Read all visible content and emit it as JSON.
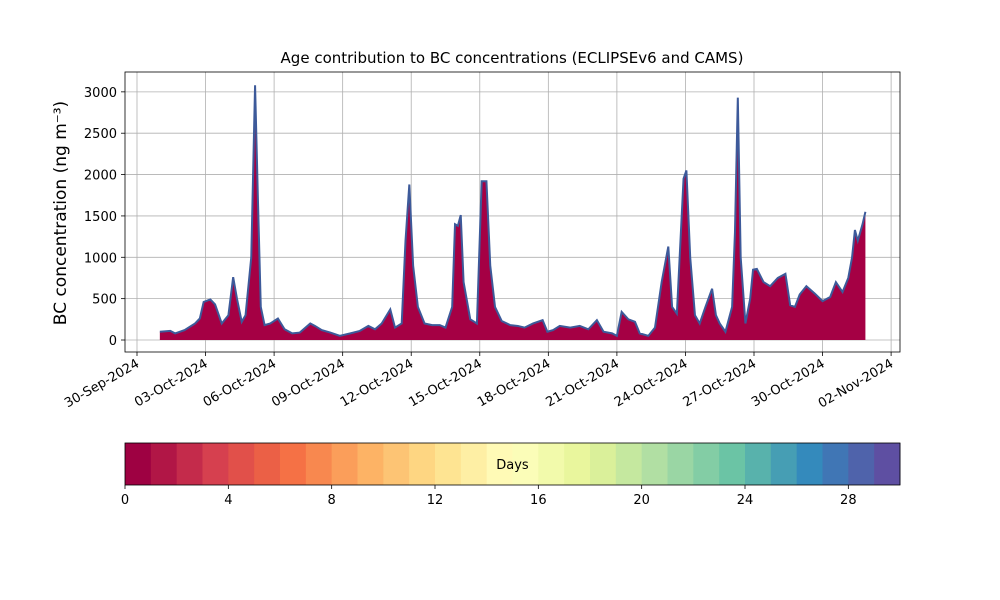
{
  "chart_data": {
    "type": "area",
    "title": "Age contribution to BC concentrations (ECLIPSEv6 and CAMS)",
    "y_label": "BC concentration (ng m⁻³)",
    "x": [
      "2024-10-01T00:00",
      "2024-10-01T11:00",
      "2024-10-01T16:00",
      "2024-10-02T02:00",
      "2024-10-02T13:00",
      "2024-10-02T18:00",
      "2024-10-02T22:00",
      "2024-10-03T05:00",
      "2024-10-03T10:00",
      "2024-10-03T17:00",
      "2024-10-04T00:00",
      "2024-10-04T05:00",
      "2024-10-04T09:00",
      "2024-10-04T14:00",
      "2024-10-04T18:00",
      "2024-10-05T00:00",
      "2024-10-05T04:00",
      "2024-10-05T07:00",
      "2024-10-05T10:00",
      "2024-10-05T14:00",
      "2024-10-05T20:00",
      "2024-10-06T04:00",
      "2024-10-06T11:00",
      "2024-10-06T19:00",
      "2024-10-07T03:00",
      "2024-10-07T14:00",
      "2024-10-07T19:00",
      "2024-10-08T02:00",
      "2024-10-08T11:00",
      "2024-10-08T21:00",
      "2024-10-09T08:00",
      "2024-10-09T18:00",
      "2024-10-10T03:00",
      "2024-10-10T10:00",
      "2024-10-10T17:00",
      "2024-10-11T02:00",
      "2024-10-11T07:00",
      "2024-10-11T14:00",
      "2024-10-11T18:00",
      "2024-10-11T22:00",
      "2024-10-12T02:00",
      "2024-10-12T07:00",
      "2024-10-12T14:00",
      "2024-10-12T22:00",
      "2024-10-13T06:00",
      "2024-10-13T12:00",
      "2024-10-13T19:00",
      "2024-10-13T22:00",
      "2024-10-14T01:00",
      "2024-10-14T04:00",
      "2024-10-14T07:00",
      "2024-10-14T14:00",
      "2024-10-14T21:00",
      "2024-10-15T02:00",
      "2024-10-15T07:00",
      "2024-10-15T11:00",
      "2024-10-15T16:00",
      "2024-10-15T23:00",
      "2024-10-16T08:00",
      "2024-10-16T16:00",
      "2024-10-16T23:00",
      "2024-10-17T08:00",
      "2024-10-17T18:00",
      "2024-10-17T23:00",
      "2024-10-18T05:00",
      "2024-10-18T12:00",
      "2024-10-18T23:00",
      "2024-10-19T09:00",
      "2024-10-19T18:00",
      "2024-10-20T03:00",
      "2024-10-20T10:00",
      "2024-10-20T19:00",
      "2024-10-21T00:00",
      "2024-10-21T05:00",
      "2024-10-21T12:00",
      "2024-10-21T19:00",
      "2024-10-22T00:00",
      "2024-10-22T09:00",
      "2024-10-22T16:00",
      "2024-10-22T23:00",
      "2024-10-23T06:00",
      "2024-10-23T10:00",
      "2024-10-23T15:00",
      "2024-10-23T22:00",
      "2024-10-24T01:00",
      "2024-10-24T05:00",
      "2024-10-24T10:00",
      "2024-10-24T15:00",
      "2024-10-24T21:00",
      "2024-10-25T04:00",
      "2024-10-25T08:00",
      "2024-10-25T12:00",
      "2024-10-25T18:00",
      "2024-10-26T01:00",
      "2024-10-26T04:00",
      "2024-10-26T07:00",
      "2024-10-26T10:00",
      "2024-10-26T15:00",
      "2024-10-26T20:00",
      "2024-10-26T23:00",
      "2024-10-27T03:00",
      "2024-10-27T10:00",
      "2024-10-27T17:00",
      "2024-10-28T01:00",
      "2024-10-28T09:00",
      "2024-10-28T14:00",
      "2024-10-28T19:00",
      "2024-10-29T00:00",
      "2024-10-29T07:00",
      "2024-10-29T16:00",
      "2024-10-30T00:00",
      "2024-10-30T08:00",
      "2024-10-30T14:00",
      "2024-10-30T21:00",
      "2024-10-31T03:00",
      "2024-10-31T07:00",
      "2024-10-31T10:00",
      "2024-10-31T13:00",
      "2024-10-31T18:00",
      "2024-10-31T21:00"
    ],
    "series": [
      {
        "color": "#a50044",
        "line_color": "#3d5a9a",
        "values": [
          100,
          110,
          80,
          120,
          200,
          260,
          460,
          490,
          430,
          200,
          300,
          760,
          500,
          220,
          300,
          1000,
          3080,
          1700,
          400,
          180,
          200,
          260,
          130,
          80,
          90,
          200,
          170,
          120,
          90,
          50,
          80,
          110,
          170,
          130,
          200,
          370,
          150,
          200,
          1200,
          1880,
          900,
          400,
          200,
          180,
          180,
          150,
          400,
          1400,
          1380,
          1510,
          700,
          250,
          200,
          1920,
          1920,
          900,
          400,
          230,
          180,
          170,
          150,
          200,
          240,
          100,
          120,
          170,
          150,
          170,
          130,
          240,
          100,
          80,
          50,
          340,
          250,
          220,
          80,
          50,
          150,
          700,
          1130,
          400,
          320,
          1950,
          2050,
          1000,
          300,
          200,
          400,
          620,
          300,
          200,
          100,
          400,
          1300,
          2930,
          1000,
          200,
          500,
          850,
          860,
          700,
          650,
          750,
          800,
          420,
          400,
          550,
          650,
          560,
          470,
          520,
          700,
          580,
          750,
          1000,
          1330,
          1200,
          1400,
          1550
        ]
      }
    ],
    "xlim": [
      "2024-09-29T11:24",
      "2024-11-02T09:20"
    ],
    "xticks": [
      {
        "value": "2024-09-30T00:00",
        "label": "30-Sep-2024"
      },
      {
        "value": "2024-10-03T00:00",
        "label": "03-Oct-2024"
      },
      {
        "value": "2024-10-06T00:00",
        "label": "06-Oct-2024"
      },
      {
        "value": "2024-10-09T00:00",
        "label": "09-Oct-2024"
      },
      {
        "value": "2024-10-12T00:00",
        "label": "12-Oct-2024"
      },
      {
        "value": "2024-10-15T00:00",
        "label": "15-Oct-2024"
      },
      {
        "value": "2024-10-18T00:00",
        "label": "18-Oct-2024"
      },
      {
        "value": "2024-10-21T00:00",
        "label": "21-Oct-2024"
      },
      {
        "value": "2024-10-24T00:00",
        "label": "24-Oct-2024"
      },
      {
        "value": "2024-10-27T00:00",
        "label": "27-Oct-2024"
      },
      {
        "value": "2024-10-30T00:00",
        "label": "30-Oct-2024"
      },
      {
        "value": "2024-11-02T00:00",
        "label": "02-Nov-2024"
      }
    ],
    "ylim": [
      -145,
      3240
    ],
    "yticks": [
      0,
      500,
      1000,
      1500,
      2000,
      2500,
      3000
    ],
    "grid": true,
    "colorbar": {
      "label": "Days",
      "lim": [
        0,
        30
      ],
      "bins": [
        0,
        1,
        2,
        3,
        4,
        5,
        6,
        7,
        8,
        9,
        10,
        11,
        12,
        13,
        14,
        15,
        16,
        17,
        18,
        19,
        20,
        21,
        22,
        23,
        24,
        25,
        26,
        27,
        28,
        29,
        30
      ],
      "colormap": [
        "#9e0142",
        "#d53e4f",
        "#f46d43",
        "#fdae61",
        "#fee08b",
        "#ffffbf",
        "#e6f598",
        "#abdda4",
        "#66c2a5",
        "#3288bd",
        "#5e4fa2"
      ],
      "ticks": [
        0,
        4,
        8,
        12,
        16,
        20,
        24,
        28
      ]
    }
  }
}
